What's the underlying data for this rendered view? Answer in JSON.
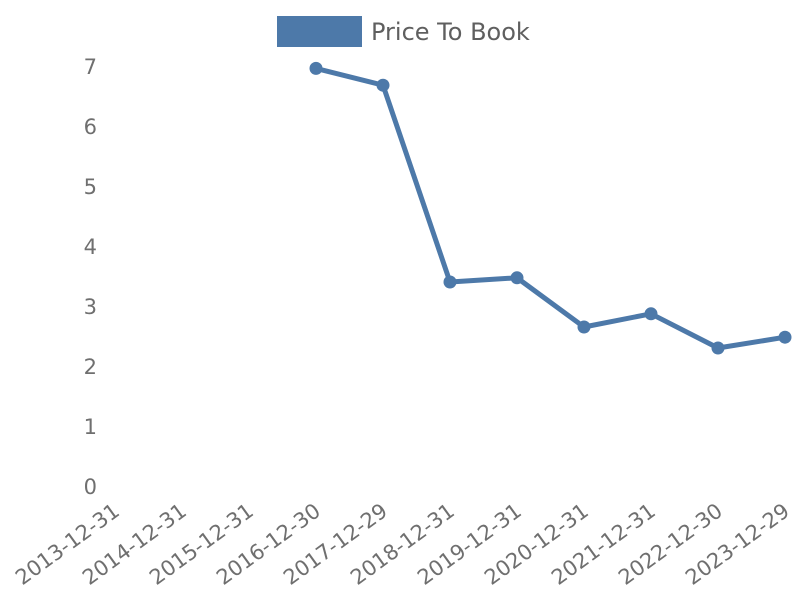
{
  "legend": {
    "label": "Price To Book",
    "swatch_color": "#4d79a9"
  },
  "chart_data": {
    "type": "line",
    "title": "",
    "xlabel": "",
    "ylabel": "",
    "categories": [
      "2013-12-31",
      "2014-12-31",
      "2015-12-31",
      "2016-12-30",
      "2017-12-29",
      "2018-12-31",
      "2019-12-31",
      "2020-12-31",
      "2021-12-31",
      "2022-12-30",
      "2023-12-29"
    ],
    "series": [
      {
        "name": "Price To Book",
        "color": "#4d79a9",
        "start_index": 3,
        "values": [
          6.96,
          6.68,
          3.4,
          3.47,
          2.65,
          2.87,
          2.3,
          2.48
        ]
      }
    ],
    "ylim": [
      0,
      7
    ],
    "yticks": [
      0,
      1,
      2,
      3,
      4,
      5,
      6,
      7
    ],
    "grid": false,
    "axis_lines": false,
    "legend_position": "top",
    "x_label_rotation_deg": -36,
    "axis_label_color": "#6f6f6f"
  }
}
